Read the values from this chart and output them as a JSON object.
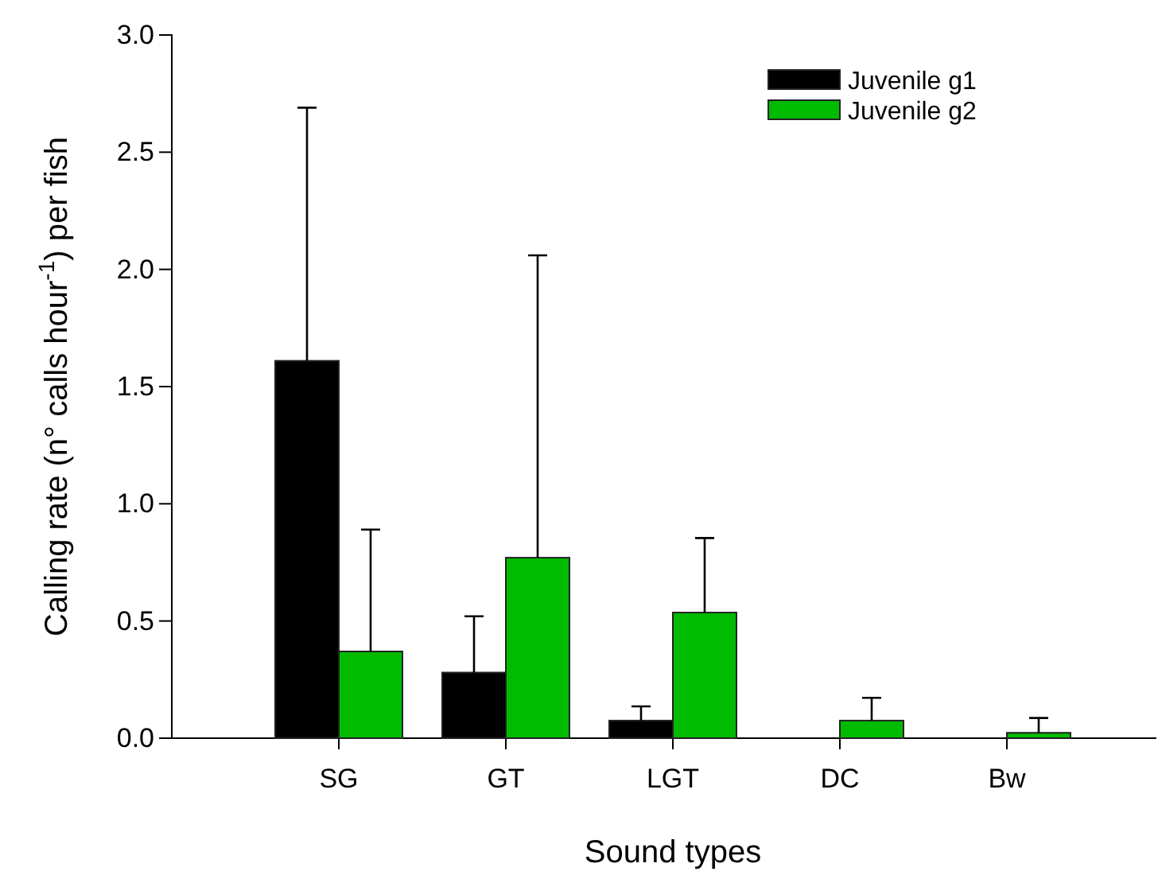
{
  "chart_data": {
    "type": "bar",
    "xlabel": "Sound types",
    "ylabel": "Calling rate (n° calls hour$^{-1}$) per fish",
    "categories": [
      "SG",
      "GT",
      "LGT",
      "DC",
      "Bw"
    ],
    "series": [
      {
        "name": "Juvenile g1",
        "color": "#000000",
        "values": [
          1.61,
          0.28,
          0.075,
          0,
          0
        ],
        "errors": [
          [
            1.61,
            2.69
          ],
          [
            0.28,
            0.52
          ],
          [
            0.075,
            0.136
          ],
          null,
          null
        ]
      },
      {
        "name": "Juvenile g2",
        "color": "#00bb00",
        "values": [
          0.37,
          0.77,
          0.536,
          0.075,
          0.023
        ],
        "errors": [
          [
            0.37,
            0.89
          ],
          [
            0.77,
            2.06
          ],
          [
            0.536,
            0.854
          ],
          [
            0.075,
            0.172
          ],
          [
            0.023,
            0.086
          ]
        ]
      }
    ],
    "ylim": [
      0,
      3.0
    ],
    "yticks": [
      {
        "value": 0,
        "label": "0.0"
      },
      {
        "value": 0.5,
        "label": "0.5"
      },
      {
        "value": 1,
        "label": "1.0"
      },
      {
        "value": 1.5,
        "label": "1.5"
      },
      {
        "value": 2,
        "label": "2.0"
      },
      {
        "value": 2.5,
        "label": "2.5"
      },
      {
        "value": 3,
        "label": "3.0"
      }
    ],
    "legend": "top right",
    "grid": false
  }
}
